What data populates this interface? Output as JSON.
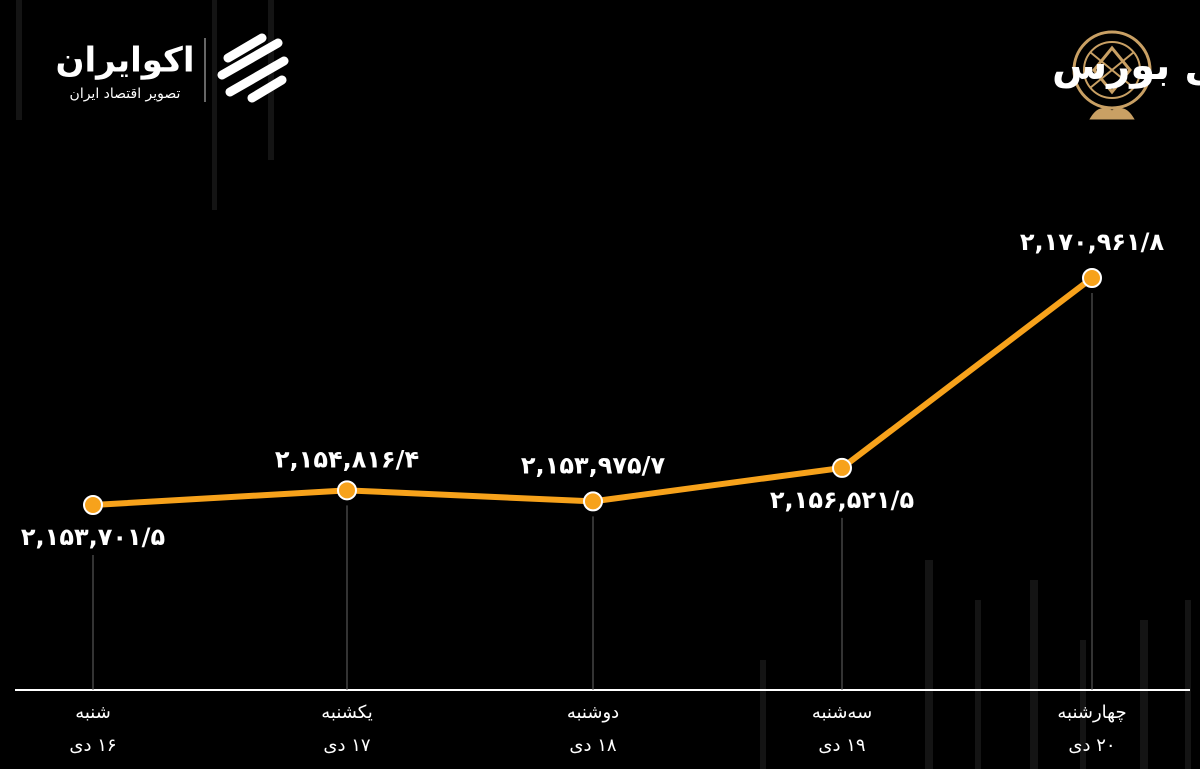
{
  "brand": {
    "name": "اکوایران",
    "tagline": "تصویر اقتصاد ایران"
  },
  "chart_data": {
    "type": "line",
    "title": "روند هفته شاخص کل بورس",
    "categories": [
      "شنبه",
      "یکشنبه",
      "دوشنبه",
      "سه‌شنبه",
      "چهارشنبه"
    ],
    "category_dates": [
      "۱۶ دی",
      "۱۷ دی",
      "۱۸ دی",
      "۱۹ دی",
      "۲۰ دی"
    ],
    "values": [
      2153701.5,
      2154816.4,
      2153975.7,
      2156521.5,
      2170961.8
    ],
    "value_labels": [
      "۲,۱۵۳,۷۰۱/۵",
      "۲,۱۵۴,۸۱۶/۴",
      "۲,۱۵۳,۹۷۵/۷",
      "۲,۱۵۶,۵۲۱/۵",
      "۲,۱۷۰,۹۶۱/۸"
    ],
    "color": "#f7a21b"
  }
}
